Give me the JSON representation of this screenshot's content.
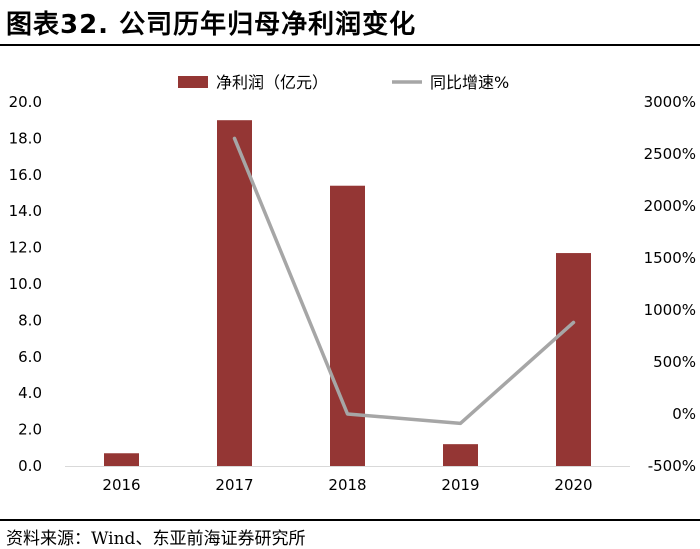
{
  "header": {
    "title": "图表32. 公司历年归母净利润变化"
  },
  "footer": {
    "source": "资料来源：Wind、东亚前海证券研究所"
  },
  "colors": {
    "bar": "#943634",
    "line": "#a6a6a6",
    "axis": "#d9d9d9"
  },
  "chart_data": {
    "type": "bar+line",
    "title": "",
    "categories": [
      "2016",
      "2017",
      "2018",
      "2019",
      "2020"
    ],
    "series": [
      {
        "name": "净利润（亿元）",
        "type": "bar",
        "axis": "left",
        "values": [
          0.7,
          19.0,
          15.4,
          1.2,
          11.7
        ]
      },
      {
        "name": "同比增速%",
        "type": "line",
        "axis": "right",
        "values": [
          null,
          2650,
          0,
          -90,
          880
        ]
      }
    ],
    "y_left": {
      "ylim": [
        0,
        20
      ],
      "ticks": [
        0,
        2,
        4,
        6,
        8,
        10,
        12,
        14,
        16,
        18,
        20
      ],
      "tick_labels": [
        "0.0",
        "2.0",
        "4.0",
        "6.0",
        "8.0",
        "10.0",
        "12.0",
        "14.0",
        "16.0",
        "18.0",
        "20.0"
      ]
    },
    "y_right": {
      "ylim": [
        -500,
        3000
      ],
      "ticks": [
        -500,
        0,
        500,
        1000,
        1500,
        2000,
        2500,
        3000
      ],
      "tick_labels": [
        "-500%",
        "0%",
        "500%",
        "1000%",
        "1500%",
        "2000%",
        "2500%",
        "3000%"
      ]
    },
    "grid": false,
    "legend_position": "top-center"
  }
}
